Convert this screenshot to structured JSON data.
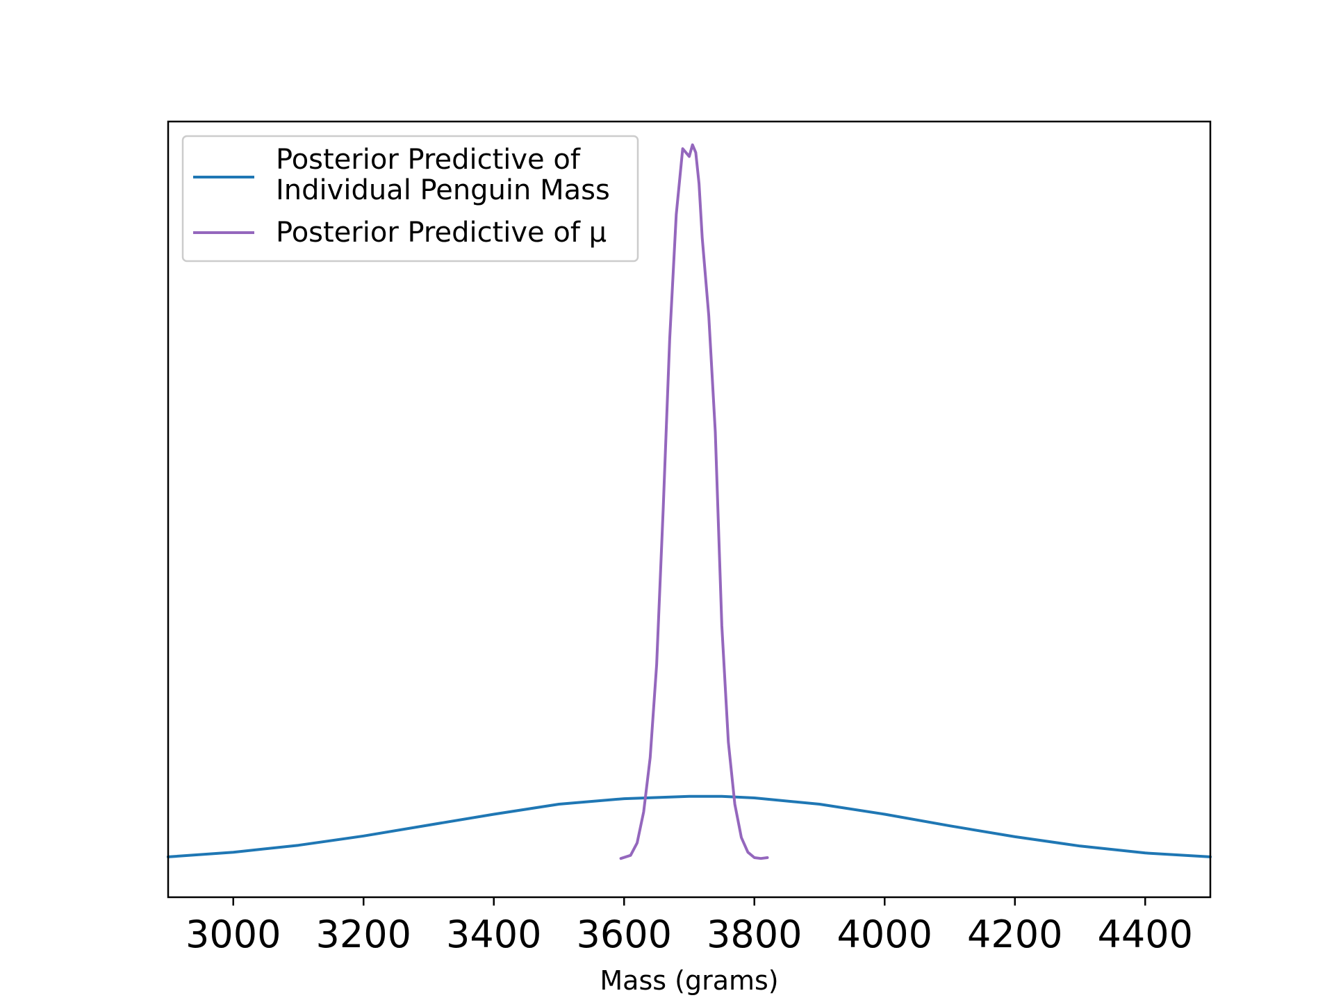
{
  "chart_data": {
    "type": "line",
    "title": "",
    "xlabel": "Mass (grams)",
    "ylabel": "",
    "xlim": [
      2900,
      4500
    ],
    "ylim": [
      0,
      1
    ],
    "x_ticks": [
      3000,
      3200,
      3400,
      3600,
      3800,
      4000,
      4200,
      4400
    ],
    "y_ticks_visible": false,
    "grid": false,
    "legend_position": "upper-left",
    "series": [
      {
        "name": "Posterior Predictive of\nIndividual Penguin Mass",
        "color": "#1f77b4",
        "x": [
          2900,
          3000,
          3100,
          3200,
          3300,
          3400,
          3500,
          3600,
          3700,
          3750,
          3800,
          3900,
          4000,
          4100,
          4200,
          4300,
          4400,
          4500
        ],
        "y": [
          0.052,
          0.058,
          0.067,
          0.079,
          0.093,
          0.107,
          0.12,
          0.127,
          0.13,
          0.13,
          0.128,
          0.12,
          0.107,
          0.092,
          0.078,
          0.066,
          0.057,
          0.052
        ]
      },
      {
        "name": "Posterior Predictive of μ",
        "color": "#9467bd",
        "x": [
          3595,
          3610,
          3620,
          3630,
          3640,
          3650,
          3660,
          3670,
          3680,
          3690,
          3700,
          3705,
          3710,
          3715,
          3720,
          3730,
          3740,
          3750,
          3760,
          3770,
          3780,
          3790,
          3800,
          3810,
          3820
        ],
        "y": [
          0.05,
          0.054,
          0.07,
          0.11,
          0.18,
          0.3,
          0.5,
          0.72,
          0.88,
          0.965,
          0.955,
          0.97,
          0.96,
          0.92,
          0.85,
          0.75,
          0.6,
          0.35,
          0.2,
          0.12,
          0.077,
          0.058,
          0.051,
          0.05,
          0.051
        ]
      }
    ]
  }
}
